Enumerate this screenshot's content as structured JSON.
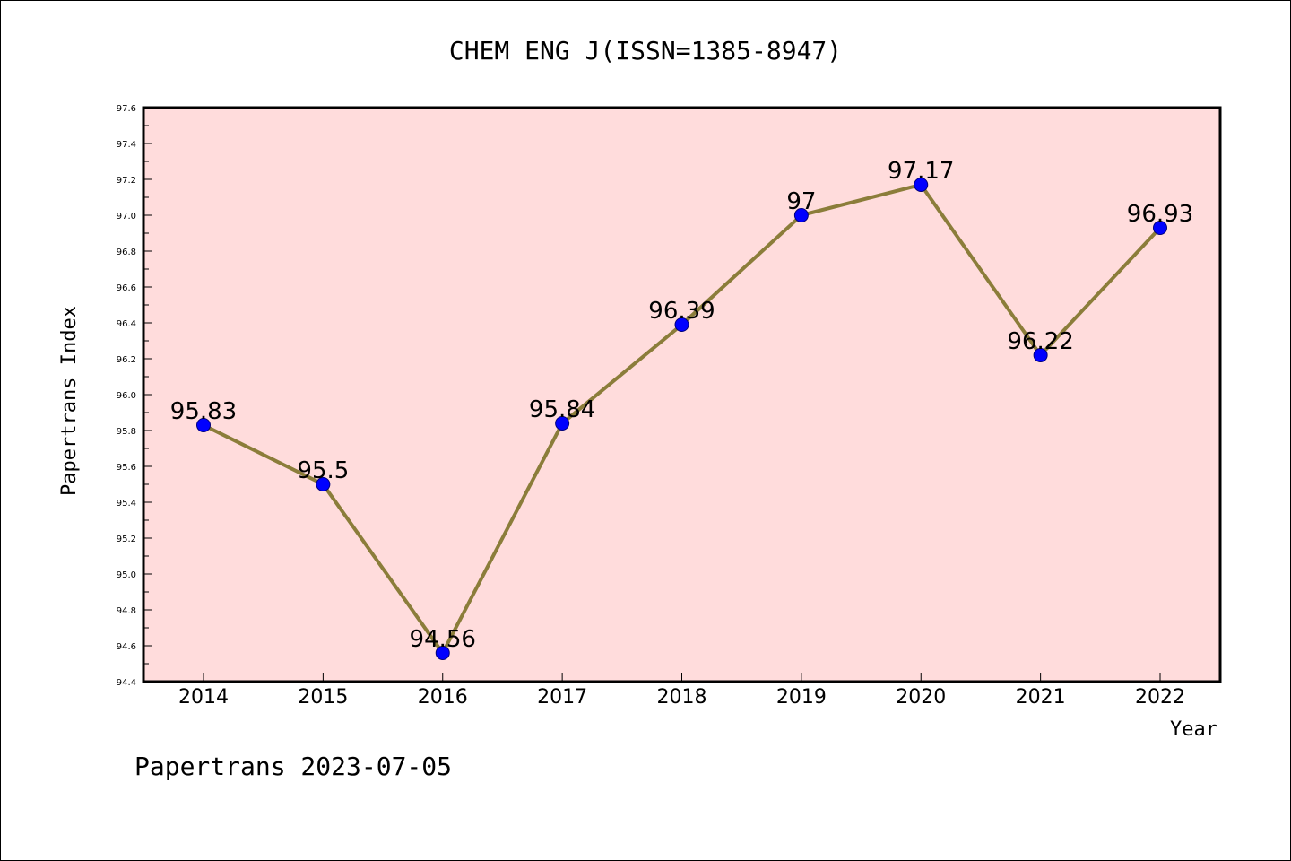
{
  "footer_text": "Papertrans 2023-07-05",
  "chart_data": {
    "type": "line",
    "title": "CHEM ENG J(ISSN=1385-8947)",
    "xlabel": "Year",
    "ylabel": "Papertrans Index",
    "categories": [
      "2014",
      "2015",
      "2016",
      "2017",
      "2018",
      "2019",
      "2020",
      "2021",
      "2022"
    ],
    "values": [
      95.83,
      95.5,
      94.56,
      95.84,
      96.39,
      97,
      97.17,
      96.22,
      96.93
    ],
    "data_labels": [
      "95.83",
      "95.5",
      "94.56",
      "95.84",
      "96.39",
      "97",
      "97.17",
      "96.22",
      "96.93"
    ],
    "ylim": [
      94.4,
      97.6
    ],
    "yticks": [
      "94.4",
      "94.6",
      "94.8",
      "95.0",
      "95.2",
      "95.4",
      "95.6",
      "95.8",
      "96.0",
      "96.2",
      "96.4",
      "96.6",
      "96.8",
      "97.0",
      "97.2",
      "97.4",
      "97.6"
    ],
    "grid": false,
    "line_color": "#8b7d3a",
    "marker_color": "#0000ff",
    "plot_background": "#ffdcdc"
  }
}
